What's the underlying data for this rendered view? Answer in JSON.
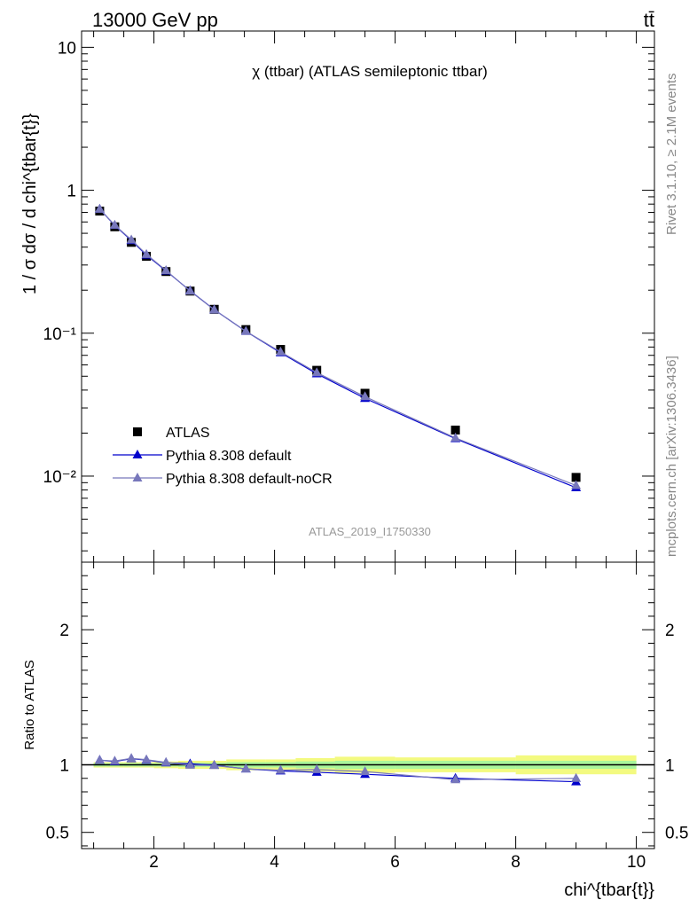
{
  "header": {
    "left": "13000 GeV pp",
    "right": "tt̄"
  },
  "side_text": {
    "rivet": "Rivet 3.1.10, ≥ 2.1M events",
    "mcplots": "mcplots.cern.ch [arXiv:1306.3436]"
  },
  "chart_data": [
    {
      "type": "line",
      "panel": "main",
      "title": "χ (ttbar) (ATLAS semileptonic ttbar)",
      "ylabel": "1 / σ dσ / d chi^{tbar{t}}",
      "xlabel": "",
      "watermark": "ATLAS_2019_I1750330",
      "yscale": "log",
      "xlim": [
        0.8,
        10.3
      ],
      "ylim": [
        0.0025,
        13
      ],
      "y_ticks": [
        {
          "value": 0.01,
          "label": "10⁻²"
        },
        {
          "value": 0.1,
          "label": "10⁻¹"
        },
        {
          "value": 1,
          "label": "1"
        },
        {
          "value": 10,
          "label": "10"
        }
      ],
      "legend_position": "lower-left",
      "x": [
        1.1,
        1.35,
        1.625,
        1.875,
        2.2,
        2.6,
        3.0,
        3.525,
        4.1,
        4.7,
        5.5,
        7.0,
        9.0
      ],
      "series": [
        {
          "name": "ATLAS",
          "color": "#000000",
          "marker": "square",
          "values": [
            0.715,
            0.555,
            0.432,
            0.345,
            0.27,
            0.197,
            0.147,
            0.106,
            0.077,
            0.055,
            0.038,
            0.021,
            0.0098
          ]
        },
        {
          "name": "Pythia 8.308 default",
          "color": "#0000cc",
          "marker": "triangle",
          "values": [
            0.738,
            0.568,
            0.445,
            0.352,
            0.273,
            0.198,
            0.146,
            0.103,
            0.073,
            0.052,
            0.035,
            0.0183,
            0.0083
          ]
        },
        {
          "name": "Pythia 8.308 default-noCR",
          "color": "#7777bb",
          "marker": "triangle",
          "values": [
            0.738,
            0.57,
            0.45,
            0.356,
            0.275,
            0.197,
            0.146,
            0.103,
            0.074,
            0.053,
            0.036,
            0.0185,
            0.0086
          ]
        }
      ]
    },
    {
      "type": "line",
      "panel": "ratio",
      "ylabel": "Ratio to ATLAS",
      "xlabel": "chi^{tbar{t}}",
      "xlim": [
        0.8,
        10.3
      ],
      "ylim": [
        0.38,
        2.5
      ],
      "x_ticks": [
        2,
        4,
        6,
        8,
        10
      ],
      "y_ticks": [
        0.5,
        1,
        2
      ],
      "x": [
        1.1,
        1.35,
        1.625,
        1.875,
        2.2,
        2.6,
        3.0,
        3.525,
        4.1,
        4.7,
        5.5,
        7.0,
        9.0
      ],
      "uncertainty_band": {
        "edges": [
          1.0,
          1.2,
          1.5,
          1.75,
          2.0,
          2.4,
          2.8,
          3.2,
          3.85,
          4.35,
          5.0,
          6.0,
          8.0,
          10.0
        ],
        "inner": [
          0.012,
          0.012,
          0.012,
          0.012,
          0.012,
          0.015,
          0.015,
          0.02,
          0.02,
          0.025,
          0.03,
          0.03,
          0.03
        ],
        "outer": [
          0.02,
          0.02,
          0.02,
          0.02,
          0.025,
          0.03,
          0.03,
          0.04,
          0.04,
          0.05,
          0.06,
          0.055,
          0.07
        ]
      },
      "series": [
        {
          "name": "Pythia 8.308 default",
          "color": "#0000cc",
          "marker": "triangle",
          "values": [
            1.035,
            1.025,
            1.045,
            1.035,
            1.015,
            1.008,
            0.997,
            0.97,
            0.955,
            0.945,
            0.93,
            0.9,
            0.875
          ]
        },
        {
          "name": "Pythia 8.308 default-noCR",
          "color": "#7777bb",
          "marker": "triangle",
          "values": [
            1.035,
            1.028,
            1.048,
            1.038,
            1.018,
            0.998,
            0.995,
            0.97,
            0.96,
            0.965,
            0.95,
            0.89,
            0.9
          ]
        }
      ]
    }
  ]
}
